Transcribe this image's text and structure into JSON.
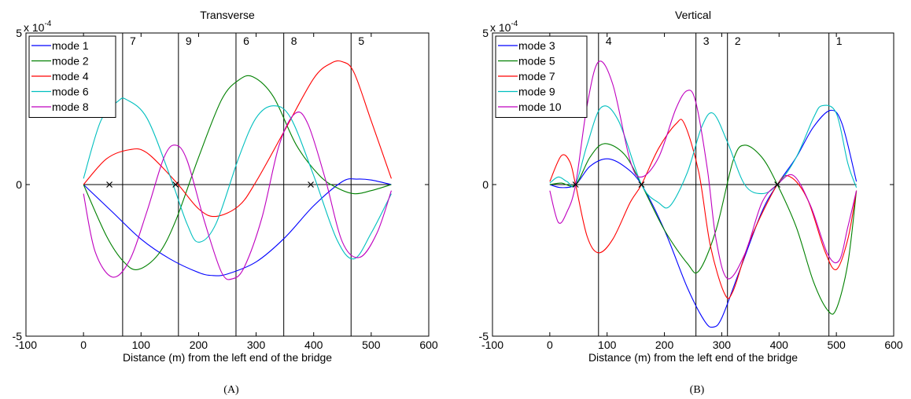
{
  "chart_data": [
    {
      "type": "line",
      "title": "Transverse",
      "xlabel": "Distance (m) from the left end of the bridge",
      "ylabel": "",
      "panel_label": "(A)",
      "y_multiplier": "x 10",
      "y_exponent": "-4",
      "xlim": [
        -100,
        600
      ],
      "ylim": [
        -5,
        5
      ],
      "xticks": [
        "-100",
        "0",
        "100",
        "200",
        "300",
        "400",
        "500",
        "600"
      ],
      "yticks": [
        "-5",
        "0",
        "5"
      ],
      "zero_line": true,
      "grid": false,
      "legend_position": "top-left",
      "vertical_lines": [
        {
          "x": 68,
          "label": "7"
        },
        {
          "x": 165,
          "label": "9"
        },
        {
          "x": 265,
          "label": "6"
        },
        {
          "x": 348,
          "label": "8"
        },
        {
          "x": 465,
          "label": "5"
        }
      ],
      "nodes": [
        45,
        160,
        395
      ],
      "series": [
        {
          "name": "mode 1",
          "color": "#0000ff",
          "x": [
            0,
            50,
            100,
            150,
            200,
            225,
            250,
            300,
            350,
            400,
            450,
            475,
            500,
            535
          ],
          "y": [
            0,
            -0.9,
            -1.8,
            -2.45,
            -2.9,
            -3.0,
            -2.95,
            -2.55,
            -1.75,
            -0.7,
            0.1,
            0.18,
            0.15,
            0
          ]
        },
        {
          "name": "mode 2",
          "color": "#008000",
          "x": [
            0,
            40,
            70,
            95,
            130,
            160,
            200,
            240,
            270,
            295,
            330,
            370,
            410,
            440,
            470,
            500,
            535
          ],
          "y": [
            0,
            -1.7,
            -2.55,
            -2.8,
            -2.3,
            -1.2,
            0.9,
            2.8,
            3.45,
            3.55,
            2.9,
            1.3,
            0.3,
            -0.1,
            -0.3,
            -0.2,
            0
          ]
        },
        {
          "name": "mode 4",
          "color": "#ff0000",
          "x": [
            0,
            40,
            80,
            110,
            160,
            200,
            230,
            270,
            300,
            350,
            400,
            430,
            450,
            470,
            500,
            535
          ],
          "y": [
            0,
            0.85,
            1.15,
            1.05,
            0.1,
            -0.8,
            -1.05,
            -0.7,
            0.1,
            1.8,
            3.5,
            4.0,
            4.05,
            3.7,
            2.1,
            0.2
          ]
        },
        {
          "name": "mode 6",
          "color": "#00bfbf",
          "x": [
            0,
            30,
            60,
            75,
            110,
            150,
            180,
            200,
            230,
            270,
            300,
            330,
            360,
            400,
            440,
            470,
            500,
            535
          ],
          "y": [
            0.2,
            2.1,
            2.75,
            2.8,
            2.2,
            0.3,
            -1.3,
            -1.9,
            -1.3,
            0.9,
            2.2,
            2.6,
            2.2,
            0.3,
            -1.8,
            -2.45,
            -1.6,
            -0.3
          ]
        },
        {
          "name": "mode 8",
          "color": "#bf00bf",
          "x": [
            0,
            20,
            50,
            80,
            110,
            140,
            160,
            180,
            210,
            240,
            260,
            280,
            310,
            340,
            368,
            390,
            420,
            450,
            480,
            510,
            535
          ],
          "y": [
            -0.3,
            -2.2,
            -3.05,
            -2.5,
            -0.9,
            0.9,
            1.3,
            0.8,
            -1.2,
            -2.9,
            -3.1,
            -2.7,
            -1.1,
            1.3,
            2.35,
            2.0,
            0.2,
            -1.9,
            -2.4,
            -1.6,
            -0.2
          ]
        }
      ]
    },
    {
      "type": "line",
      "title": "Vertical",
      "xlabel": "Distance (m) from the left end of the bridge",
      "ylabel": "",
      "panel_label": "(B)",
      "y_multiplier": "x 10",
      "y_exponent": "-4",
      "xlim": [
        -100,
        600
      ],
      "ylim": [
        -5,
        5
      ],
      "xticks": [
        "-100",
        "0",
        "100",
        "200",
        "300",
        "400",
        "500",
        "600"
      ],
      "yticks": [
        "-5",
        "0",
        "5"
      ],
      "zero_line": true,
      "grid": false,
      "legend_position": "top-left",
      "vertical_lines": [
        {
          "x": 85,
          "label": "4"
        },
        {
          "x": 255,
          "label": "3"
        },
        {
          "x": 310,
          "label": "2"
        },
        {
          "x": 487,
          "label": "1"
        }
      ],
      "nodes": [
        45,
        160,
        397
      ],
      "series": [
        {
          "name": "mode 3",
          "color": "#0000ff",
          "x": [
            0,
            20,
            45,
            70,
            100,
            130,
            160,
            200,
            240,
            270,
            285,
            300,
            330,
            370,
            397,
            430,
            460,
            490,
            510,
            535
          ],
          "y": [
            0,
            -0.1,
            0,
            0.6,
            0.85,
            0.6,
            0,
            -1.5,
            -3.4,
            -4.5,
            -4.7,
            -4.4,
            -2.9,
            -0.9,
            0,
            0.9,
            1.9,
            2.45,
            2.0,
            0.1
          ]
        },
        {
          "name": "mode 5",
          "color": "#008000",
          "x": [
            0,
            20,
            45,
            70,
            95,
            130,
            160,
            200,
            240,
            260,
            290,
            320,
            340,
            370,
            397,
            430,
            460,
            485,
            500,
            520,
            535
          ],
          "y": [
            0,
            0.05,
            0,
            0.9,
            1.35,
            1.0,
            0,
            -1.5,
            -2.6,
            -2.85,
            -1.5,
            0.8,
            1.3,
            0.9,
            0,
            -1.4,
            -3.2,
            -4.15,
            -4.1,
            -2.6,
            -0.2
          ]
        },
        {
          "name": "mode 7",
          "color": "#ff0000",
          "x": [
            0,
            20,
            35,
            45,
            65,
            85,
            110,
            140,
            160,
            190,
            220,
            235,
            260,
            280,
            305,
            320,
            350,
            397,
            420,
            450,
            480,
            500,
            520,
            535
          ],
          "y": [
            0.1,
            0.95,
            0.75,
            0,
            -1.7,
            -2.25,
            -1.8,
            -0.6,
            0,
            1.2,
            2.0,
            2.0,
            0.4,
            -2.0,
            -3.6,
            -3.5,
            -1.8,
            0,
            0.25,
            -0.5,
            -2.2,
            -2.8,
            -1.8,
            -0.2
          ]
        },
        {
          "name": "mode 9",
          "color": "#00bfbf",
          "x": [
            0,
            15,
            30,
            45,
            65,
            90,
            120,
            160,
            190,
            210,
            240,
            265,
            285,
            310,
            340,
            370,
            397,
            430,
            460,
            475,
            500,
            520,
            535
          ],
          "y": [
            0.05,
            0.25,
            0.1,
            0,
            1.3,
            2.55,
            2.1,
            0,
            -0.6,
            -0.7,
            0.4,
            1.9,
            2.35,
            1.4,
            0,
            -0.3,
            0,
            0.9,
            2.2,
            2.6,
            2.35,
            0.7,
            -0.1
          ]
        },
        {
          "name": "mode 10",
          "color": "#bf00bf",
          "x": [
            0,
            15,
            30,
            45,
            65,
            85,
            110,
            140,
            160,
            190,
            220,
            240,
            255,
            275,
            290,
            310,
            340,
            370,
            397,
            425,
            455,
            485,
            505,
            520,
            535
          ],
          "y": [
            -0.2,
            -1.25,
            -0.9,
            0,
            2.6,
            4.05,
            3.3,
            0.8,
            0.25,
            0.9,
            2.5,
            3.1,
            2.7,
            0.5,
            -1.8,
            -3.1,
            -2.3,
            -0.6,
            0,
            0.3,
            -0.7,
            -2.3,
            -2.5,
            -1.4,
            -0.2
          ]
        }
      ]
    }
  ]
}
